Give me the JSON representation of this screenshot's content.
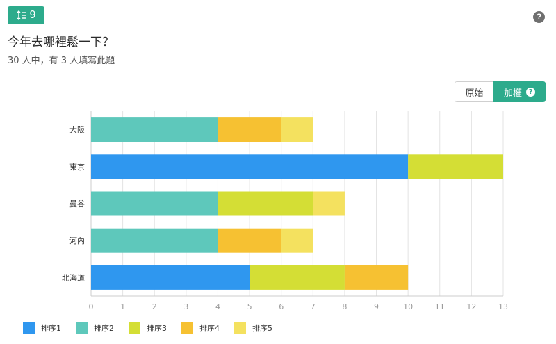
{
  "header": {
    "badge_number": "9",
    "title": "今年去哪裡鬆一下？",
    "subtitle": "30 人中，有 3 人填寫此題",
    "help_icon": "question-circle-icon",
    "help_text": "?"
  },
  "toggle": {
    "raw_label": "原始",
    "weighted_label": "加權",
    "weighted_help_text": "?",
    "active": "weighted"
  },
  "colors": {
    "accent": "#2dab8c",
    "series": [
      "#2f97ef",
      "#5ec8bb",
      "#d4de35",
      "#f6c132",
      "#f4e15f"
    ]
  },
  "chart_data": {
    "type": "bar",
    "orientation": "horizontal",
    "stacked": true,
    "categories": [
      "大阪",
      "東京",
      "曼谷",
      "河內",
      "北海道"
    ],
    "series": [
      {
        "name": "排序1",
        "values": [
          0,
          10,
          0,
          0,
          5
        ]
      },
      {
        "name": "排序2",
        "values": [
          4,
          0,
          4,
          4,
          0
        ]
      },
      {
        "name": "排序3",
        "values": [
          0,
          3,
          3,
          0,
          3
        ]
      },
      {
        "name": "排序4",
        "values": [
          2,
          0,
          0,
          2,
          2
        ]
      },
      {
        "name": "排序5",
        "values": [
          1,
          0,
          1,
          1,
          0
        ]
      }
    ],
    "xlim": [
      0,
      13
    ],
    "xticks": [
      "0",
      "1",
      "2",
      "3",
      "4",
      "5",
      "6",
      "7",
      "8",
      "9",
      "10",
      "11",
      "12",
      "13"
    ],
    "grid": true,
    "legend_position": "bottom-left"
  }
}
